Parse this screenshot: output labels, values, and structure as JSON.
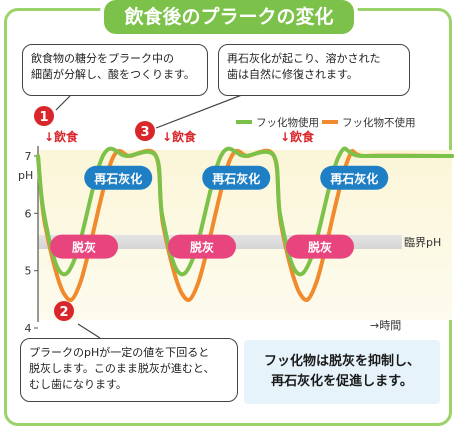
{
  "title": "飲食後のプラークの変化",
  "callouts": {
    "one": [
      "飲食物の糖分をプラーク中の",
      "細菌が分解し、酸をつくります。"
    ],
    "three": [
      "再石灰化が起こり、溶かされた",
      "歯は自然に修復されます。"
    ],
    "two": [
      "プラークのpHが一定の値を下回ると",
      "脱灰します。このまま脱灰が進むと、",
      "むし歯になります。"
    ]
  },
  "note": [
    "フッ化物は脱灰を抑制し、",
    "再石灰化を促進します。"
  ],
  "markers": {
    "one": "1",
    "two": "2",
    "three": "3"
  },
  "chart_data": {
    "type": "line",
    "ylabel": "pH",
    "xlabel": "→時間",
    "y_ticks": [
      "7",
      "6",
      "5",
      "4"
    ],
    "ylim": [
      4,
      7
    ],
    "threshold": {
      "label": "臨界pH",
      "value": 5.5
    },
    "events": [
      {
        "label": "↓飲食",
        "x": 0.0
      },
      {
        "label": "↓飲食",
        "x": 1.0
      },
      {
        "label": "↓飲食",
        "x": 2.0
      }
    ],
    "legend_position": "top-right",
    "series": [
      {
        "name": "フッ化物使用",
        "color": "#7cc24a",
        "x": [
          0,
          0.05,
          0.18,
          0.32,
          0.55,
          0.75,
          1.0,
          1.05,
          1.18,
          1.32,
          1.55,
          1.75,
          2.0,
          2.05,
          2.18,
          2.32,
          2.55,
          2.75
        ],
        "y": [
          7.0,
          6.0,
          5.0,
          5.25,
          7.0,
          7.0,
          7.0,
          6.0,
          5.0,
          5.25,
          7.0,
          7.0,
          7.0,
          6.0,
          5.0,
          5.25,
          7.0,
          7.0
        ]
      },
      {
        "name": "フッ化物不使用",
        "color": "#f08a2c",
        "x": [
          0,
          0.06,
          0.22,
          0.36,
          0.62,
          0.78,
          1.0,
          1.06,
          1.22,
          1.36,
          1.62,
          1.78,
          2.0,
          2.06,
          2.22,
          2.36,
          2.62,
          2.78
        ],
        "y": [
          7.0,
          5.8,
          4.6,
          4.8,
          6.9,
          7.0,
          7.0,
          5.8,
          4.6,
          4.8,
          6.9,
          7.0,
          7.0,
          5.8,
          4.6,
          4.8,
          6.9,
          7.0
        ]
      }
    ],
    "annotations": {
      "remineralization": "再石灰化",
      "demineralization": "脱灰"
    }
  }
}
